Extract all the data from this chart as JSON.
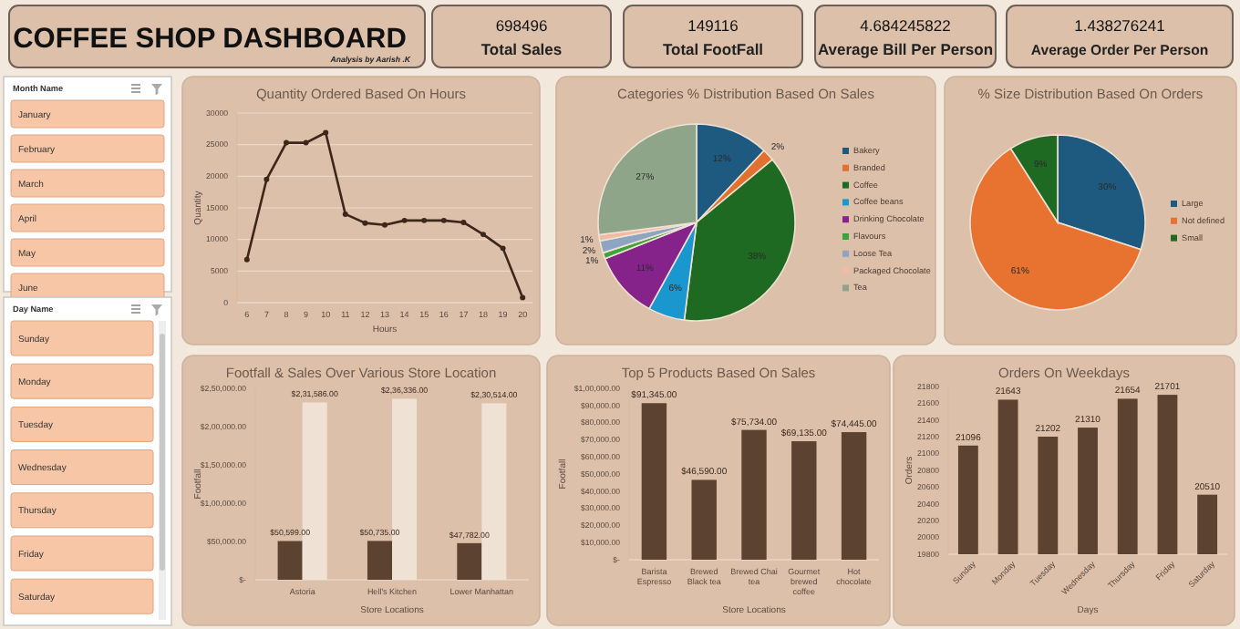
{
  "chart_data": [
    {
      "type": "other",
      "title": "COFFEE SHOP DASHBOARD",
      "subtitle": "Analysis by Aarish .K"
    },
    {
      "type": "other",
      "title": "Total Sales",
      "annotations": [
        "698496"
      ]
    },
    {
      "type": "other",
      "title": "Total FootFall",
      "annotations": [
        "149116"
      ]
    },
    {
      "type": "other",
      "title": "Average Bill Per Person",
      "annotations": [
        "4.684245822"
      ]
    },
    {
      "type": "other",
      "title": "Average Order  Per Person",
      "annotations": [
        "1.438276241"
      ]
    },
    {
      "type": "other",
      "title": "Month Name",
      "annotations": [
        "January",
        "February",
        "March",
        "April",
        "May",
        "June"
      ]
    },
    {
      "type": "line",
      "title": "Quantity Ordered Based On Hours",
      "xlabel": "Hours",
      "ylabel": "Quantity",
      "categories": [
        "6",
        "7",
        "8",
        "9",
        "10",
        "11",
        "12",
        "13",
        "14",
        "15",
        "16",
        "17",
        "18",
        "19",
        "20"
      ],
      "series": [
        {
          "color": "#3d261a",
          "values": [
            6800,
            19500,
            25300,
            25300,
            26900,
            14000,
            12600,
            12300,
            13000,
            13000,
            13000,
            12700,
            10800,
            8600,
            800
          ]
        }
      ],
      "ylim": [
        0,
        30000
      ],
      "yticks": [
        0,
        5000,
        10000,
        15000,
        20000,
        25000,
        30000
      ],
      "grid": "y",
      "marker": "circle",
      "line_style": "solid"
    },
    {
      "type": "pie",
      "title": "Categories % Distribution Based On Sales",
      "categories": [
        "Bakery",
        "Branded",
        "Coffee",
        "Coffee beans",
        "Drinking Chocolate",
        "Flavours",
        "Loose Tea",
        "Packaged Chocolate",
        "Tea"
      ],
      "values": [
        12,
        2,
        38,
        6,
        11,
        1,
        2,
        1,
        27
      ],
      "value_labels": [
        "12%",
        "2%",
        "38%",
        "6%",
        "11%",
        "1%",
        "2%",
        "1%",
        "27%"
      ],
      "colors": [
        "#1e5a80",
        "#e2712f",
        "#1f6a22",
        "#1b97d0",
        "#86238a",
        "#3fa33c",
        "#8ea5c2",
        "#f2b9a5",
        "#8ea58a"
      ],
      "legend": "right"
    },
    {
      "type": "pie",
      "title": "% Size Distribution Based On Orders",
      "categories": [
        "Large",
        "Not defined",
        "Small"
      ],
      "values": [
        30,
        61,
        9
      ],
      "value_labels": [
        "30%",
        "61%",
        "9%"
      ],
      "colors": [
        "#1e5a80",
        "#e8722f",
        "#1f6a22"
      ],
      "legend": "right"
    },
    {
      "type": "other",
      "title": "Day Name",
      "annotations": [
        "Sunday",
        "Monday",
        "Tuesday",
        "Wednesday",
        "Thursday",
        "Friday",
        "Saturday"
      ]
    },
    {
      "type": "bar",
      "title": "Footfall & Sales Over Various Store Location",
      "xlabel": "Store Locations",
      "ylabel": "Footfall",
      "categories": [
        "Astoria",
        "Hell's Kitchen",
        "Lower Manhattan"
      ],
      "series": [
        {
          "color": "#5c4230",
          "values": [
            50599,
            50735,
            47782
          ],
          "value_labels": [
            "$50,599.00",
            "$50,735.00",
            "$47,782.00"
          ]
        },
        {
          "color": "#efe2d4",
          "values": [
            231586,
            236336,
            230514
          ],
          "value_labels": [
            "$2,31,586.00",
            "$2,36,336.00",
            "$2,30,514.00"
          ]
        }
      ],
      "ylim": [
        0,
        250000
      ],
      "yticks": [
        {
          "value": 0,
          "label": "$-"
        },
        {
          "value": 50000,
          "label": "$50,000.00"
        },
        {
          "value": 100000,
          "label": "$1,00,000.00"
        },
        {
          "value": 150000,
          "label": "$1,50,000.00"
        },
        {
          "value": 200000,
          "label": "$2,00,000.00"
        },
        {
          "value": 250000,
          "label": "$2,50,000.00"
        }
      ]
    },
    {
      "type": "bar",
      "title": "Top 5 Products Based On Sales",
      "xlabel": "Store Locations",
      "ylabel": "Footfall",
      "categories": [
        "Barista Espresso",
        "Brewed Black tea",
        "Brewed Chai tea",
        "Gourmet brewed coffee",
        "Hot chocolate"
      ],
      "series": [
        {
          "color": "#5c4230",
          "values": [
            91345,
            46590,
            75734,
            69135,
            74445
          ],
          "value_labels": [
            "$91,345.00",
            "$46,590.00",
            "$75,734.00",
            "$69,135.00",
            "$74,445.00"
          ]
        }
      ],
      "ylim": [
        0,
        100000
      ],
      "yticks": [
        {
          "value": 0,
          "label": "$-"
        },
        {
          "value": 10000,
          "label": "$10,000.00"
        },
        {
          "value": 20000,
          "label": "$20,000.00"
        },
        {
          "value": 30000,
          "label": "$30,000.00"
        },
        {
          "value": 40000,
          "label": "$40,000.00"
        },
        {
          "value": 50000,
          "label": "$50,000.00"
        },
        {
          "value": 60000,
          "label": "$60,000.00"
        },
        {
          "value": 70000,
          "label": "$70,000.00"
        },
        {
          "value": 80000,
          "label": "$80,000.00"
        },
        {
          "value": 90000,
          "label": "$90,000.00"
        },
        {
          "value": 100000,
          "label": "$1,00,000.00"
        }
      ]
    },
    {
      "type": "bar",
      "title": "Orders On Weekdays",
      "xlabel": "Days",
      "ylabel": "Orders",
      "categories": [
        "Sunday",
        "Monday",
        "Tuesday",
        "Wednesday",
        "Thursday",
        "Friday",
        "Saturday"
      ],
      "series": [
        {
          "color": "#5c4230",
          "values": [
            21096,
            21643,
            21202,
            21310,
            21654,
            21701,
            20510
          ]
        }
      ],
      "ylim": [
        19800,
        21800
      ],
      "yticks": [
        19800,
        20000,
        20200,
        20400,
        20600,
        20800,
        21000,
        21200,
        21400,
        21600,
        21800
      ],
      "data_labels": true
    }
  ]
}
